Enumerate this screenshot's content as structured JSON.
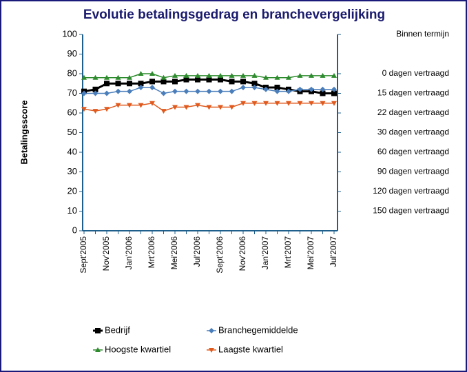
{
  "chart_data": {
    "type": "line",
    "title": "Evolutie betalingsgedrag en branchevergelijking",
    "ylabel": "Betalingsscore",
    "categories": [
      "Sept'2005",
      null,
      "Nov'2005",
      null,
      "Jan'2006",
      null,
      "Mrt'2006",
      null,
      "Mei'2006",
      null,
      "Jul'2006",
      null,
      "Sept'2006",
      null,
      "Nov'2006",
      null,
      "Jan'2007",
      null,
      "Mrt'2007",
      null,
      "Mei'2007",
      null,
      "Jul'2007"
    ],
    "ylim": [
      0,
      100
    ],
    "yticks": [
      0,
      10,
      20,
      30,
      40,
      50,
      60,
      70,
      80,
      90,
      100
    ],
    "y2lim": [
      0,
      100
    ],
    "y2ticks": [
      {
        "value": 100,
        "label": "Binnen termijn"
      },
      {
        "value": 80,
        "label": "0 dagen vertraagd"
      },
      {
        "value": 70,
        "label": "15 dagen vertraagd"
      },
      {
        "value": 60,
        "label": "22 dagen vertraagd"
      },
      {
        "value": 50,
        "label": "30 dagen vertraagd"
      },
      {
        "value": 40,
        "label": "60 dagen vertraagd"
      },
      {
        "value": 30,
        "label": "90 dagen vertraagd"
      },
      {
        "value": 20,
        "label": "120 dagen vertraagd"
      },
      {
        "value": 10,
        "label": "150 dagen vertraagd"
      }
    ],
    "grid": false,
    "legend": "bottom",
    "series": [
      {
        "name": "Bedrijf",
        "color": "#000000",
        "marker": "square",
        "values": [
          71,
          72,
          75,
          75,
          75,
          75,
          76,
          76,
          76,
          77,
          77,
          77,
          77,
          76,
          76,
          75,
          73,
          73,
          72,
          71,
          71,
          70,
          70
        ]
      },
      {
        "name": "Branchegemiddelde",
        "color": "#4a7ebb",
        "marker": "diamond",
        "values": [
          70,
          70,
          70,
          71,
          71,
          73,
          73,
          70,
          71,
          71,
          71,
          71,
          71,
          71,
          73,
          73,
          72,
          71,
          71,
          72,
          72,
          72,
          72
        ]
      },
      {
        "name": "Hoogste kwartiel",
        "color": "#2e8b2e",
        "marker": "triangle-up",
        "values": [
          78,
          78,
          78,
          78,
          78,
          80,
          80,
          78,
          79,
          79,
          79,
          79,
          79,
          79,
          79,
          79,
          78,
          78,
          78,
          79,
          79,
          79,
          79
        ]
      },
      {
        "name": "Laagste kwartiel",
        "color": "#e05a1e",
        "marker": "triangle-down",
        "values": [
          62,
          61,
          62,
          64,
          64,
          64,
          65,
          61,
          63,
          63,
          64,
          63,
          63,
          63,
          65,
          65,
          65,
          65,
          65,
          65,
          65,
          65,
          65
        ]
      }
    ]
  }
}
